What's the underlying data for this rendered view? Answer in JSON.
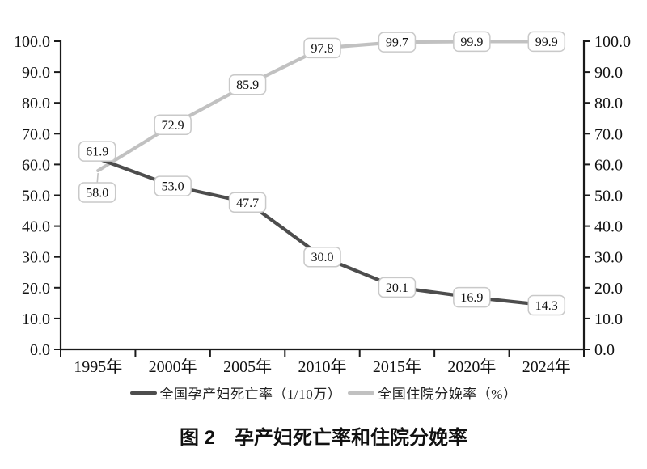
{
  "chart_data": {
    "type": "line",
    "categories": [
      "1995年",
      "2000年",
      "2005年",
      "2010年",
      "2015年",
      "2020年",
      "2024年"
    ],
    "series": [
      {
        "name": "全国孕产妇死亡率（1/10万）",
        "values": [
          61.9,
          53.0,
          47.7,
          30.0,
          20.1,
          16.9,
          14.3
        ],
        "labels": [
          "61.9",
          "53.0",
          "47.7",
          "30.0",
          "20.1",
          "16.9",
          "14.3"
        ],
        "color": "#4d4d4d"
      },
      {
        "name": "全国住院分娩率（%）",
        "values": [
          58.0,
          72.9,
          85.9,
          97.8,
          99.7,
          99.9,
          99.9
        ],
        "labels": [
          "58.0",
          "72.9",
          "85.9",
          "97.8",
          "99.7",
          "99.9",
          "99.9"
        ],
        "color": "#c1c1c1"
      }
    ],
    "ylim": [
      0,
      100
    ],
    "ytick_step": 10,
    "yticks": [
      "0.0",
      "10.0",
      "20.0",
      "30.0",
      "40.0",
      "50.0",
      "60.0",
      "70.0",
      "80.0",
      "90.0",
      "100.0"
    ],
    "dual_y_axis": true,
    "grid": false,
    "legend_position": "bottom",
    "point_labels_boxed": true,
    "xlabel": "",
    "ylabel": ""
  },
  "legend": {
    "items": [
      {
        "label": "全国孕产妇死亡率（1/10万）",
        "color": "#4d4d4d"
      },
      {
        "label": "全国住院分娩率（%）",
        "color": "#c1c1c1"
      }
    ]
  },
  "caption": {
    "text": "图 2　孕产妇死亡率和住院分娩率"
  },
  "colors": {
    "axis": "#1a1a1a",
    "label_box_border": "#c9c9c9",
    "label_box_fill": "#ffffff",
    "text": "#111111"
  }
}
